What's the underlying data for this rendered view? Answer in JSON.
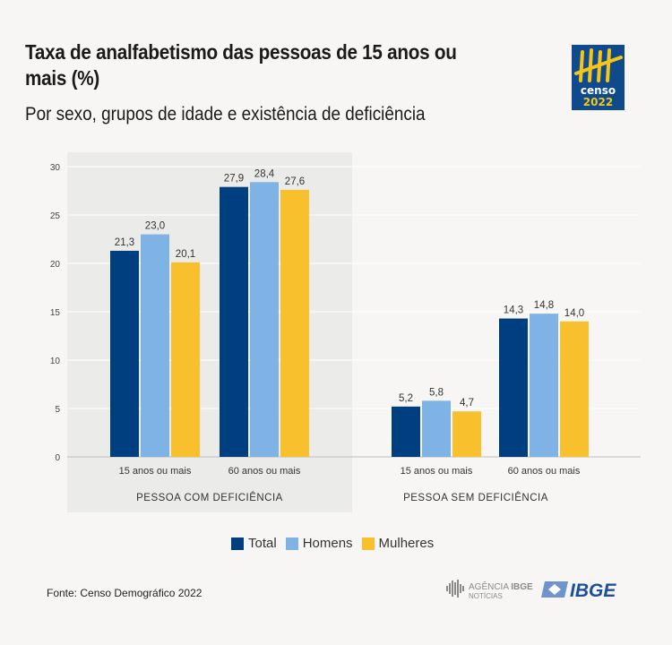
{
  "header": {
    "title": "Taxa de analfabetismo das pessoas de 15 anos ou mais (%)",
    "subtitle": "Por sexo, grupos de idade e existência de deficiência"
  },
  "logo": {
    "text_top": "censo",
    "text_bottom": "2022",
    "bg": "#0f4a8c",
    "accent": "#f5c518"
  },
  "chart_data": {
    "type": "bar",
    "title": "Taxa de analfabetismo das pessoas de 15 anos ou mais (%)",
    "ylim": [
      0,
      30
    ],
    "yticks": [
      0,
      5,
      10,
      15,
      20,
      25,
      30
    ],
    "grid": true,
    "legend_position": "bottom",
    "groups": [
      {
        "label": "PESSOA COM DEFICIÊNCIA",
        "shaded": true,
        "categories": [
          "15 anos ou mais",
          "60 anos ou mais"
        ]
      },
      {
        "label": "PESSOA SEM DEFICIÊNCIA",
        "shaded": false,
        "categories": [
          "15 anos ou mais",
          "60 anos ou mais"
        ]
      }
    ],
    "categories": [
      "15 anos ou mais",
      "60 anos ou mais",
      "15 anos ou mais",
      "60 anos ou mais"
    ],
    "series": [
      {
        "name": "Total",
        "color": "#003f7f",
        "values": [
          21.3,
          27.9,
          5.2,
          14.3
        ],
        "labels": [
          "21,3",
          "27,9",
          "5,2",
          "14,3"
        ]
      },
      {
        "name": "Homens",
        "color": "#7fb2e5",
        "values": [
          23.0,
          28.4,
          5.8,
          14.8
        ],
        "labels": [
          "23,0",
          "28,4",
          "5,8",
          "14,8"
        ]
      },
      {
        "name": "Mulheres",
        "color": "#f9c02e",
        "values": [
          20.1,
          27.6,
          4.7,
          14.0
        ],
        "labels": [
          "20,1",
          "27,6",
          "4,7",
          "14,0"
        ]
      }
    ]
  },
  "footer": {
    "source": "Fonte: Censo Demográfico 2022",
    "agencia_logo": "AGÊNCIA IBGE NOTÍCIAS",
    "ibge_logo": "IBGE"
  }
}
